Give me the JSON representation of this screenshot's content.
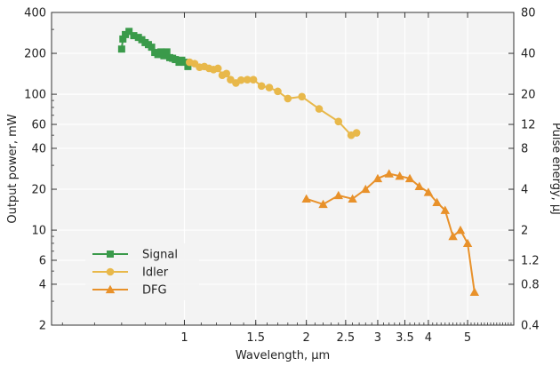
{
  "chart_data": {
    "type": "line",
    "xlabel": "Wavelength, μm",
    "ylabel": "Output power, mW",
    "y2label": "Pulse energy, μJ",
    "x_scale": "log",
    "y_scale": "log",
    "xlim": [
      0.47,
      6.5
    ],
    "ylim": [
      2,
      400
    ],
    "y2lim": [
      0.4,
      80
    ],
    "grid": true,
    "legend_position": "bottom-left",
    "x_ticks": [
      1,
      1.5,
      2,
      2.5,
      3,
      3.5,
      4,
      5
    ],
    "x_tick_labels": [
      "1",
      "1.5",
      "2",
      "2.5",
      "3",
      "3.5",
      "4",
      "5"
    ],
    "y_ticks": [
      2,
      4,
      6,
      10,
      20,
      40,
      60,
      100,
      200,
      400
    ],
    "y_tick_labels": [
      "2",
      "4",
      "6",
      "10",
      "20",
      "40",
      "60",
      "100",
      "200",
      "400"
    ],
    "y2_ticks": [
      0.4,
      0.8,
      1.2,
      2,
      4,
      8,
      12,
      20,
      40,
      80
    ],
    "y2_tick_labels": [
      "0.4",
      "0.8",
      "1.2",
      "2",
      "4",
      "8",
      "12",
      "20",
      "40",
      "80"
    ],
    "series": [
      {
        "name": "Signal",
        "color": "#3a9a4a",
        "marker": "square",
        "x": [
          0.7,
          0.705,
          0.715,
          0.73,
          0.75,
          0.77,
          0.785,
          0.8,
          0.815,
          0.83,
          0.845,
          0.86,
          0.875,
          0.89,
          0.905,
          0.92,
          0.935,
          0.95,
          0.97,
          0.985,
          1.0,
          1.02
        ],
        "y": [
          215,
          255,
          275,
          290,
          270,
          262,
          252,
          240,
          232,
          222,
          203,
          196,
          205,
          192,
          205,
          186,
          184,
          180,
          172,
          178,
          172,
          160
        ]
      },
      {
        "name": "Idler",
        "color": "#e8b84a",
        "marker": "circle",
        "x": [
          1.03,
          1.06,
          1.09,
          1.12,
          1.15,
          1.18,
          1.21,
          1.24,
          1.27,
          1.3,
          1.34,
          1.38,
          1.43,
          1.48,
          1.55,
          1.62,
          1.7,
          1.8,
          1.95,
          2.15,
          2.4,
          2.58,
          2.66
        ],
        "y": [
          172,
          168,
          158,
          160,
          155,
          152,
          155,
          138,
          142,
          128,
          121,
          127,
          128,
          128,
          115,
          112,
          105,
          93,
          96,
          78,
          63,
          50,
          52
        ]
      },
      {
        "name": "DFG",
        "color": "#e8912a",
        "marker": "triangle",
        "x": [
          2.0,
          2.2,
          2.4,
          2.6,
          2.8,
          3.0,
          3.2,
          3.4,
          3.6,
          3.8,
          4.0,
          4.2,
          4.4,
          4.6,
          4.8,
          5.0,
          5.2
        ],
        "y": [
          17,
          15.5,
          18,
          17,
          20,
          24,
          26,
          25,
          24,
          21,
          19,
          16,
          14,
          9,
          10,
          8,
          3.5
        ]
      }
    ]
  }
}
